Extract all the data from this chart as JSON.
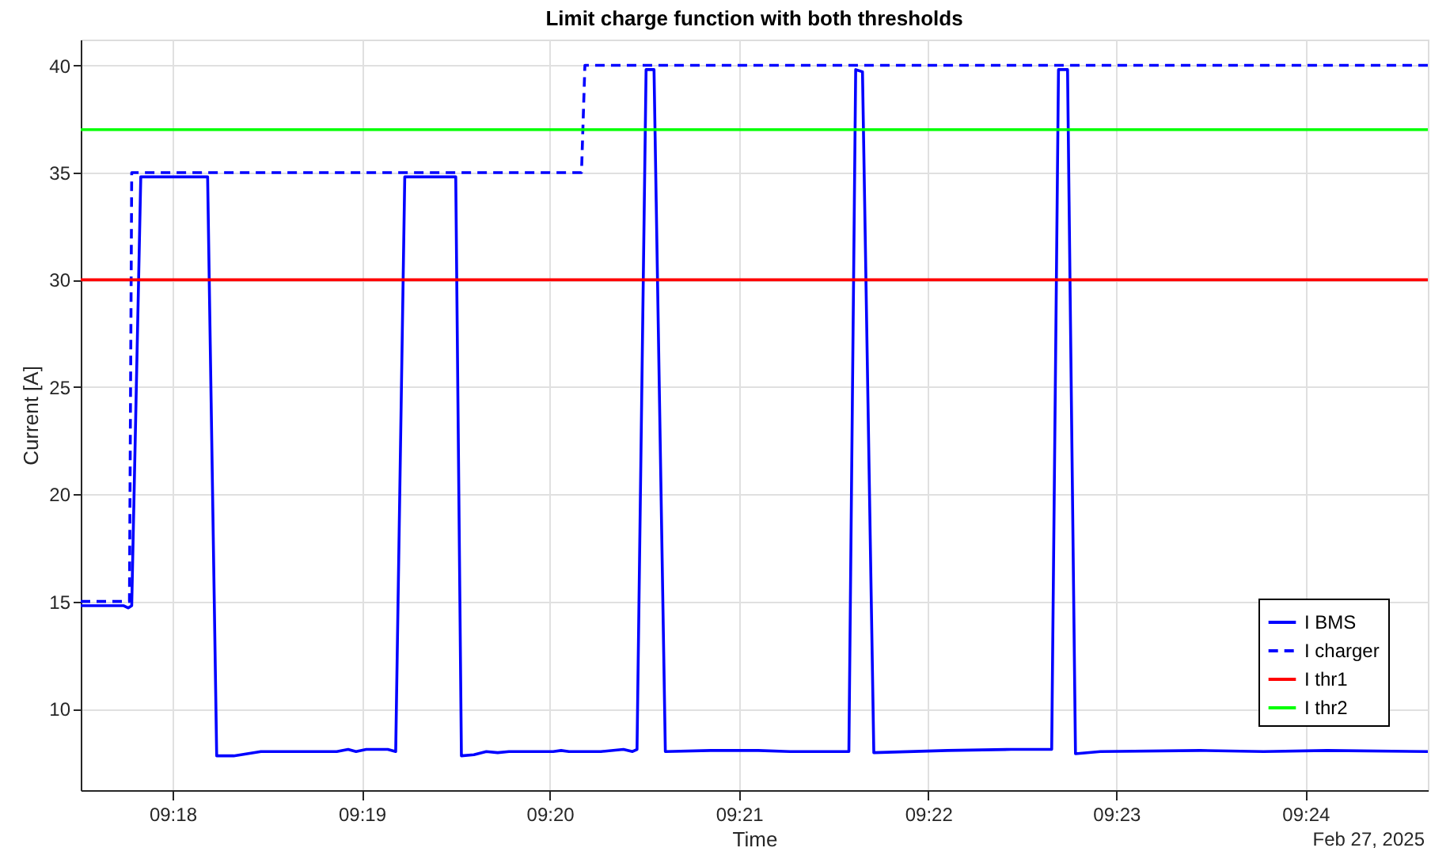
{
  "chart_data": {
    "type": "line",
    "title": "Limit charge function with both thresholds",
    "xlabel": "Time",
    "ylabel": "Current [A]",
    "annotations": [
      "Feb 27, 2025"
    ],
    "xlim": [
      9.2919,
      9.4108
    ],
    "ylim": [
      6.2,
      41.2
    ],
    "xticks": [
      {
        "value": 9.3,
        "label": "09:18"
      },
      {
        "value": 9.3167,
        "label": "09:19"
      },
      {
        "value": 9.3333,
        "label": "09:20"
      },
      {
        "value": 9.35,
        "label": "09:21"
      },
      {
        "value": 9.3667,
        "label": "09:22"
      },
      {
        "value": 9.3833,
        "label": "09:23"
      },
      {
        "value": 9.4,
        "label": "09:24"
      }
    ],
    "yticks": [
      10,
      15,
      20,
      25,
      30,
      35,
      40
    ],
    "grid": true,
    "legend": "bottom right",
    "series": [
      {
        "name": "I BMS",
        "color": "#0000ff",
        "line_style": "solid",
        "x": [
          9.2919,
          9.2957,
          9.2961,
          9.2964,
          9.2972,
          9.3031,
          9.3039,
          9.3054,
          9.3078,
          9.3145,
          9.3155,
          9.3162,
          9.3171,
          9.319,
          9.3197,
          9.3205,
          9.325,
          9.3255,
          9.3266,
          9.3277,
          9.3287,
          9.3297,
          9.3336,
          9.3343,
          9.335,
          9.3378,
          9.3398,
          9.3406,
          9.341,
          9.3418,
          9.3425,
          9.3435,
          9.3475,
          9.3517,
          9.3545,
          9.3597,
          9.3603,
          9.3609,
          9.3619,
          9.3684,
          9.374,
          9.3776,
          9.3782,
          9.379,
          9.3797,
          9.3819,
          9.3907,
          9.3963,
          9.4019,
          9.4108
        ],
        "values": [
          14.8,
          14.8,
          14.7,
          14.8,
          34.8,
          34.8,
          7.8,
          7.8,
          8.0,
          8.0,
          8.1,
          8.0,
          8.1,
          8.1,
          8.0,
          34.8,
          34.8,
          7.8,
          7.85,
          8.0,
          7.95,
          8.0,
          8.0,
          8.05,
          8.0,
          8.0,
          8.1,
          8.0,
          8.1,
          39.8,
          39.8,
          8.0,
          8.05,
          8.05,
          8.0,
          8.0,
          39.8,
          39.7,
          7.95,
          8.05,
          8.1,
          8.1,
          39.8,
          39.8,
          7.9,
          8.0,
          8.05,
          8.0,
          8.05,
          8.0
        ]
      },
      {
        "name": "I charger",
        "color": "#0000ff",
        "line_style": "dashed",
        "x": [
          9.2919,
          9.2962,
          9.2964,
          9.3361,
          9.3364,
          9.4108
        ],
        "values": [
          15,
          15,
          35,
          35,
          40,
          40
        ]
      }
    ],
    "ref_lines": [
      {
        "axis": "y",
        "value": 30,
        "label": "I thr1",
        "color": "#ff0000"
      },
      {
        "axis": "y",
        "value": 37,
        "label": "I thr2",
        "color": "#00ff00"
      }
    ]
  }
}
